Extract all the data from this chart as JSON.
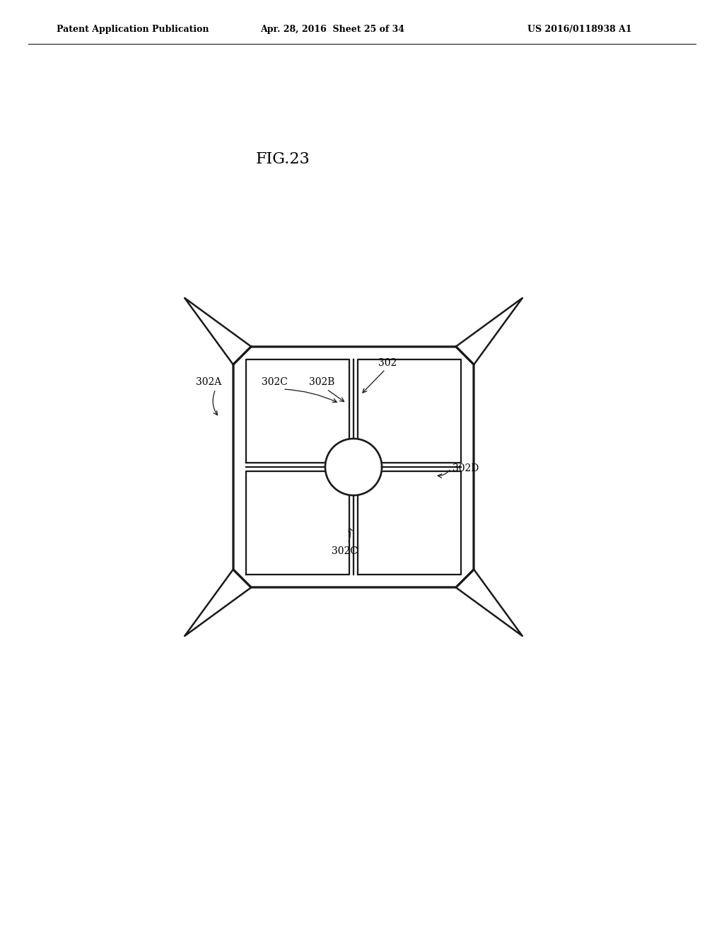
{
  "background_color": "#ffffff",
  "line_color": "#1a1a1a",
  "line_width": 1.8,
  "title": "FIG.23",
  "header_left": "Patent Application Publication",
  "header_center": "Apr. 28, 2016  Sheet 25 of 34",
  "header_right": "US 2016/0118938 A1"
}
